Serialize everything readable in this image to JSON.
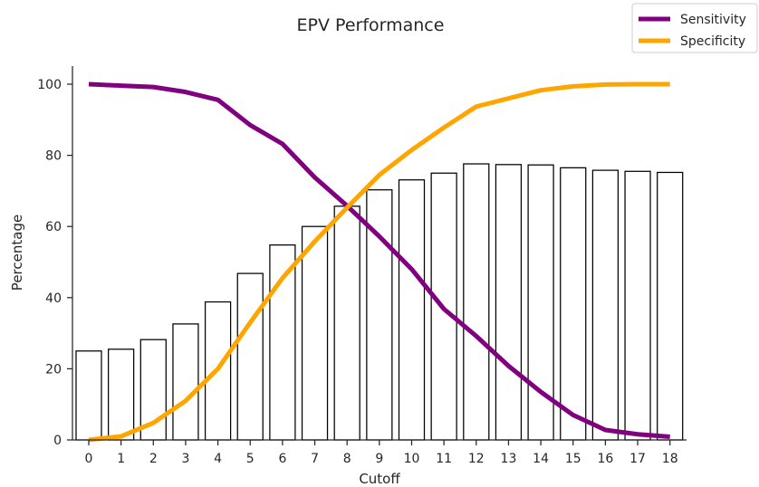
{
  "chart_data": {
    "type": "bar",
    "title": "EPV Performance",
    "xlabel": "Cutoff",
    "ylabel": "Percentage",
    "ylim": [
      0,
      105
    ],
    "yticks": [
      0,
      20,
      40,
      60,
      80,
      100
    ],
    "categories": [
      "0",
      "1",
      "2",
      "3",
      "4",
      "5",
      "6",
      "7",
      "8",
      "9",
      "10",
      "11",
      "12",
      "13",
      "14",
      "15",
      "16",
      "17",
      "18"
    ],
    "bars": [
      25,
      25.5,
      28.2,
      32.6,
      38.8,
      46.8,
      54.8,
      60,
      65.7,
      70.3,
      73.1,
      75,
      77.6,
      77.4,
      77.3,
      76.5,
      75.8,
      75.5,
      75.2
    ],
    "series": [
      {
        "name": "Sensitivity",
        "color": "#800080",
        "values": [
          100,
          99.6,
          99.2,
          97.8,
          95.6,
          88.5,
          83.2,
          73.8,
          65.8,
          57.2,
          48,
          36.8,
          29.2,
          20.8,
          13.5,
          7,
          2.8,
          1.6,
          0.9
        ]
      },
      {
        "name": "Specificity",
        "color": "#FFA500",
        "values": [
          0,
          1,
          4.8,
          11,
          20,
          33,
          45.5,
          55.8,
          65.3,
          74.5,
          81.5,
          87.8,
          93.7,
          96,
          98.3,
          99.4,
          99.9,
          100,
          100
        ]
      }
    ],
    "grid": false,
    "legend_position": "top-right"
  }
}
